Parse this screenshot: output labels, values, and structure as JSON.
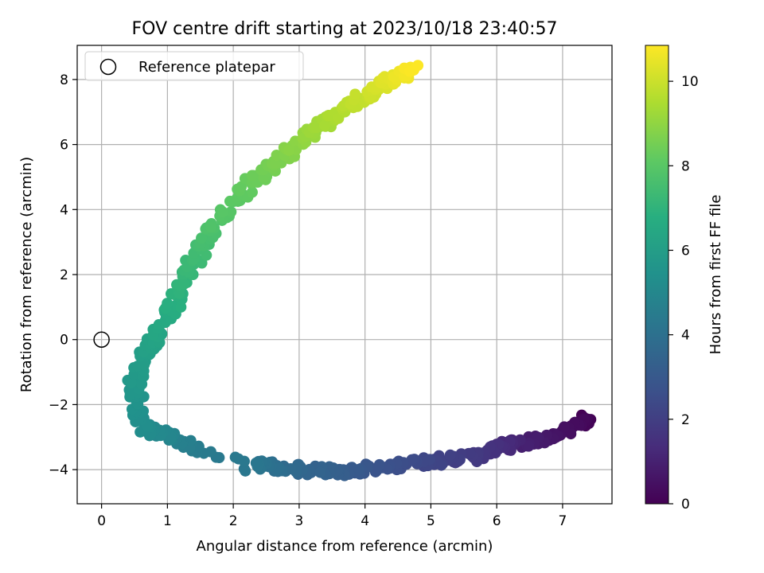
{
  "chart_data": {
    "type": "scatter",
    "title": "FOV centre drift starting at 2023/10/18 23:40:57",
    "xlabel": "Angular distance from reference (arcmin)",
    "ylabel": "Rotation from reference (arcmin)",
    "xlim": [
      -0.37,
      7.75
    ],
    "ylim": [
      -5.05,
      9.05
    ],
    "xticks": [
      "0",
      "1",
      "2",
      "3",
      "4",
      "5",
      "6",
      "7"
    ],
    "yticks": [
      "−4",
      "−2",
      "0",
      "2",
      "4",
      "6",
      "8"
    ],
    "grid": true,
    "legend": {
      "placement": "top-left",
      "entries": [
        "Reference platepar"
      ]
    },
    "reference_point": {
      "x": 0,
      "y": 0
    },
    "colorbar": {
      "label": "Hours from first FF file",
      "range": [
        0,
        10.85
      ],
      "ticks": [
        "0",
        "2",
        "4",
        "6",
        "8",
        "10"
      ],
      "colormap": "viridis"
    },
    "path_keypoints": [
      {
        "t": 0.0,
        "x": 7.4,
        "y": -2.45
      },
      {
        "t": 0.3,
        "x": 7.2,
        "y": -2.6
      },
      {
        "t": 0.6,
        "x": 6.8,
        "y": -3.0
      },
      {
        "t": 1.0,
        "x": 6.4,
        "y": -3.2
      },
      {
        "t": 1.4,
        "x": 6.0,
        "y": -3.3
      },
      {
        "t": 1.8,
        "x": 5.65,
        "y": -3.6
      },
      {
        "t": 2.1,
        "x": 5.2,
        "y": -3.7
      },
      {
        "t": 2.4,
        "x": 4.8,
        "y": -3.8
      },
      {
        "t": 2.8,
        "x": 4.1,
        "y": -3.95
      },
      {
        "t": 3.2,
        "x": 3.6,
        "y": -4.05
      },
      {
        "t": 3.6,
        "x": 3.0,
        "y": -4.0
      },
      {
        "t": 4.0,
        "x": 2.5,
        "y": -3.85
      },
      {
        "t": 4.3,
        "x": 2.25,
        "y": -3.9
      },
      {
        "t": 4.45,
        "x": 1.45,
        "y": -3.4
      },
      {
        "t": 4.7,
        "x": 1.2,
        "y": -3.05
      },
      {
        "t": 5.0,
        "x": 0.9,
        "y": -2.9
      },
      {
        "t": 5.25,
        "x": 0.6,
        "y": -2.7
      },
      {
        "t": 5.5,
        "x": 0.55,
        "y": -2.0
      },
      {
        "t": 5.75,
        "x": 0.5,
        "y": -1.3
      },
      {
        "t": 6.0,
        "x": 0.65,
        "y": -0.5
      },
      {
        "t": 6.35,
        "x": 0.85,
        "y": 0.2
      },
      {
        "t": 6.8,
        "x": 1.1,
        "y": 1.1
      },
      {
        "t": 7.3,
        "x": 1.4,
        "y": 2.4
      },
      {
        "t": 7.8,
        "x": 1.75,
        "y": 3.6
      },
      {
        "t": 8.3,
        "x": 2.3,
        "y": 4.9
      },
      {
        "t": 8.8,
        "x": 2.85,
        "y": 5.8
      },
      {
        "t": 9.3,
        "x": 3.35,
        "y": 6.6
      },
      {
        "t": 9.8,
        "x": 3.85,
        "y": 7.3
      },
      {
        "t": 10.3,
        "x": 4.3,
        "y": 7.9
      },
      {
        "t": 10.85,
        "x": 4.75,
        "y": 8.3
      }
    ]
  }
}
